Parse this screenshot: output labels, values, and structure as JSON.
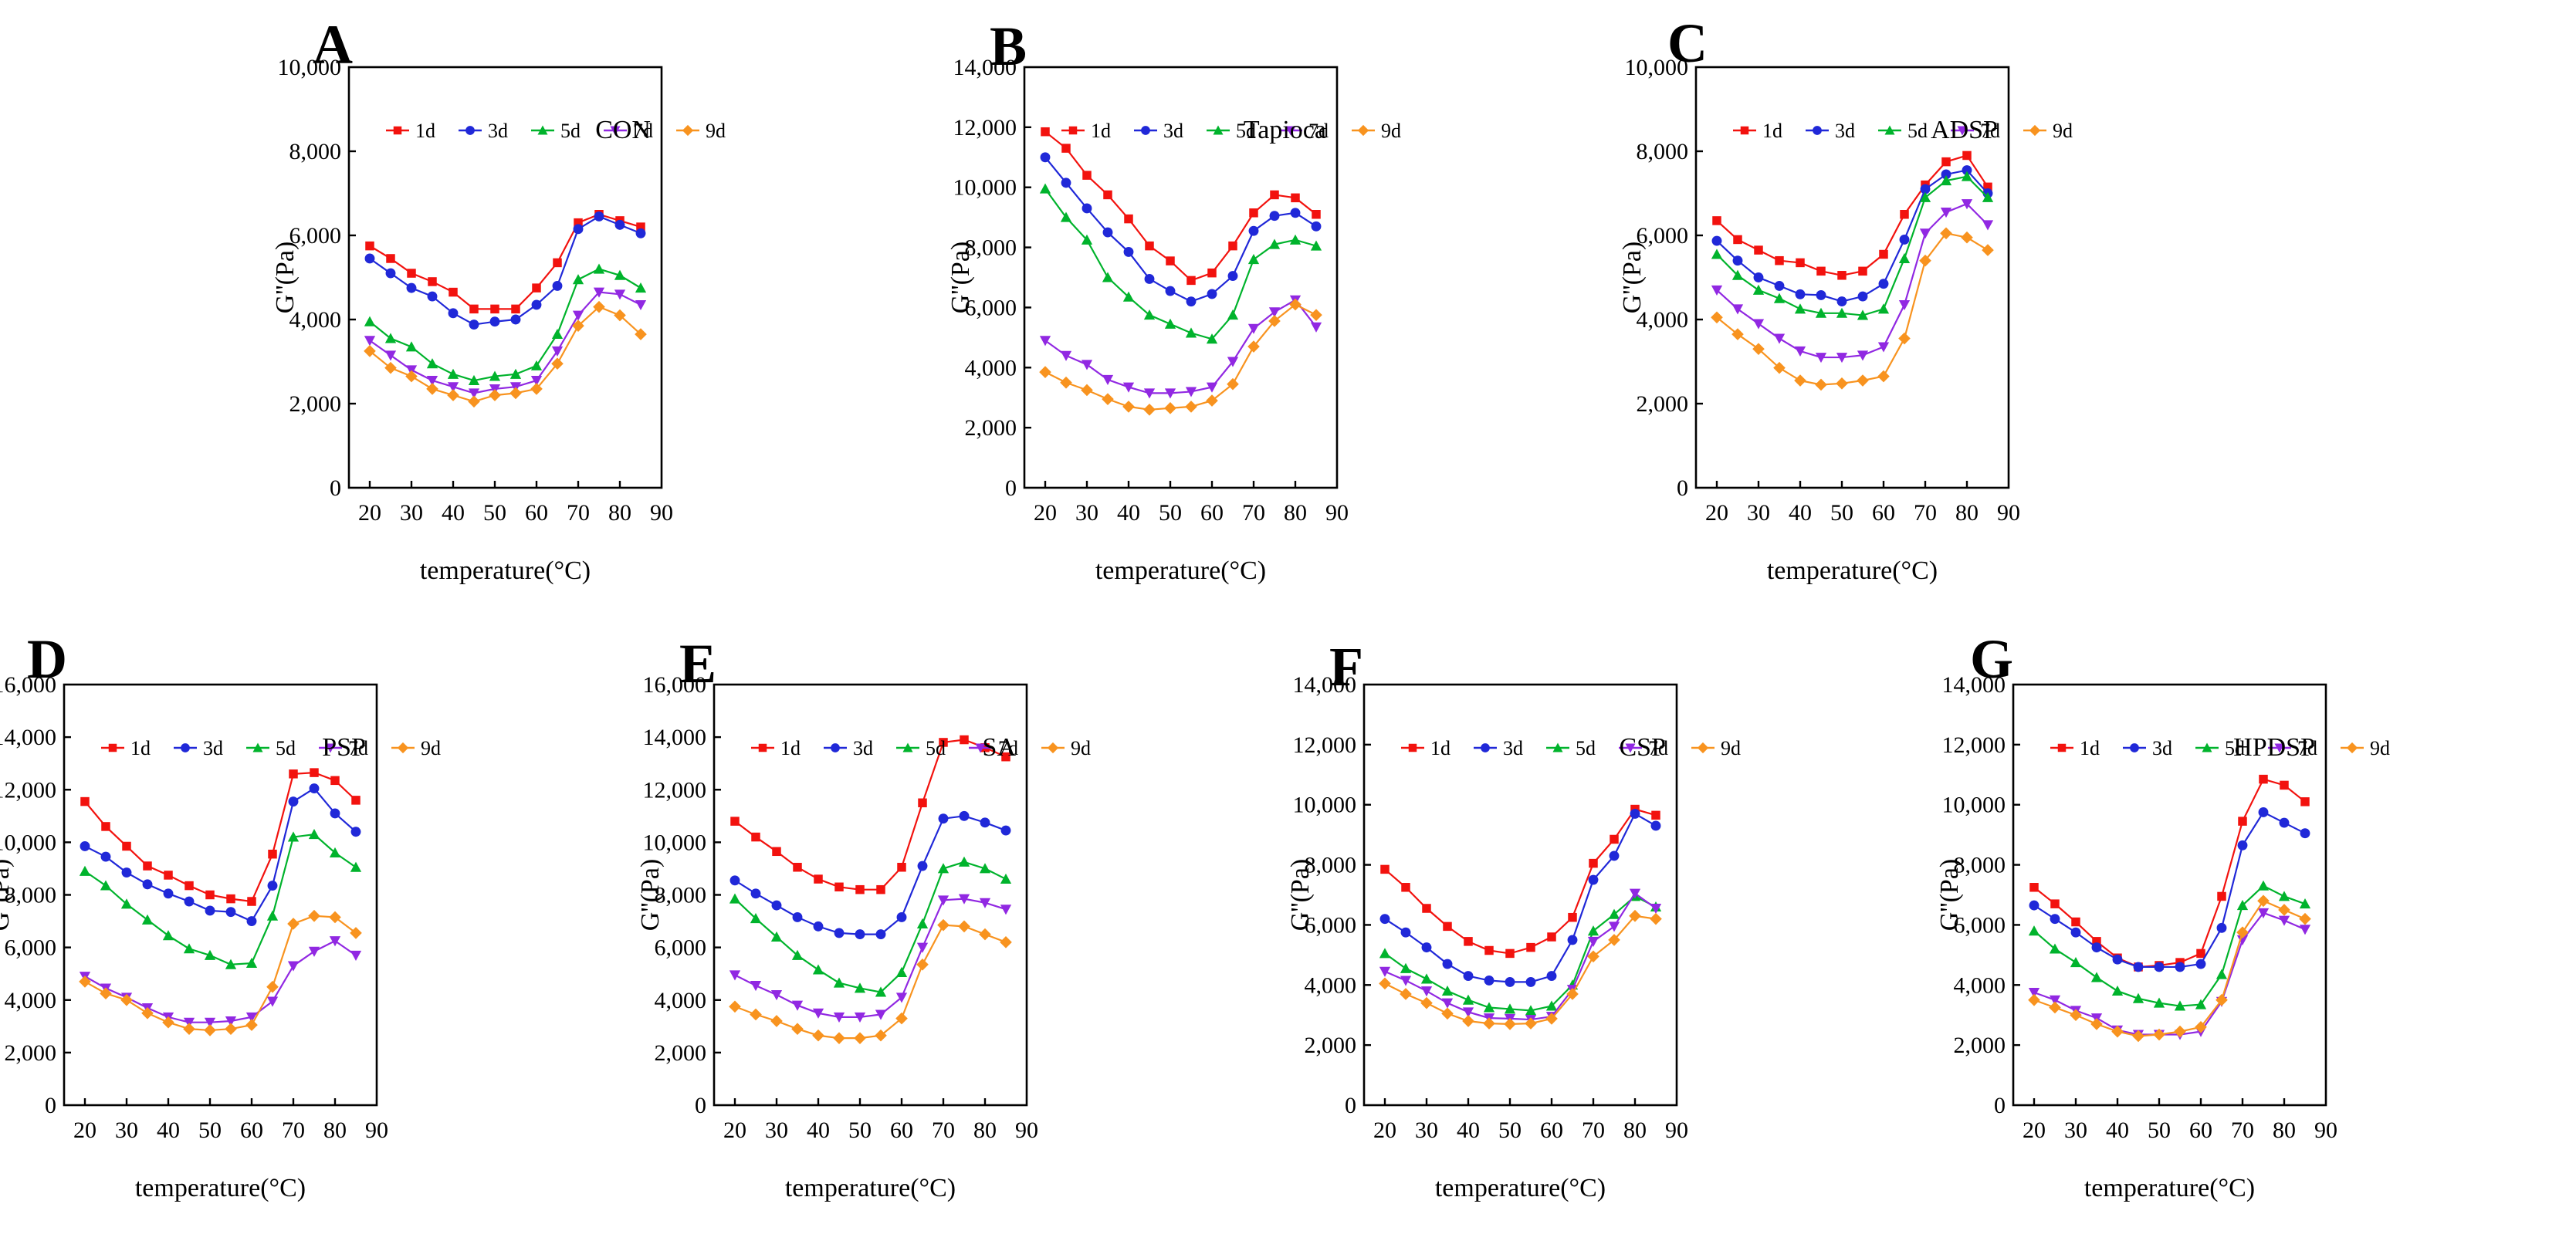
{
  "figure": {
    "x_axis_label": "temperature(°C)",
    "y_axis_label": "G''(Pa)",
    "legend_labels": [
      "1d",
      "3d",
      "5d",
      "7d",
      "9d"
    ],
    "series_colors": {
      "1d": "#f2120e",
      "3d": "#2028d8",
      "5d": "#00b32c",
      "7d": "#9128e2",
      "9d": "#f8931f"
    },
    "series_markers": {
      "1d": "square",
      "3d": "circle",
      "5d": "triangle-up",
      "7d": "triangle-down",
      "9d": "diamond"
    },
    "axis_color": "#000000"
  },
  "chart_data": [
    {
      "type": "line",
      "panel": "A",
      "name": "CON",
      "xlabel": "temperature(°C)",
      "ylabel": "G''(Pa)",
      "x": [
        20,
        25,
        30,
        35,
        40,
        45,
        50,
        55,
        60,
        65,
        70,
        75,
        80,
        85
      ],
      "xticks": [
        20,
        30,
        40,
        50,
        60,
        70,
        80,
        90
      ],
      "xlim": [
        15,
        90
      ],
      "ylim": [
        0,
        10000
      ],
      "ytick_step": 2000,
      "series": [
        {
          "name": "1d",
          "values": [
            5750,
            5450,
            5100,
            4900,
            4650,
            4250,
            4250,
            4250,
            4750,
            5350,
            6300,
            6500,
            6350,
            6200
          ]
        },
        {
          "name": "3d",
          "values": [
            5450,
            5100,
            4750,
            4550,
            4150,
            3880,
            3950,
            4000,
            4350,
            4800,
            6150,
            6450,
            6250,
            6050
          ]
        },
        {
          "name": "5d",
          "values": [
            3950,
            3550,
            3350,
            2950,
            2700,
            2550,
            2650,
            2700,
            2900,
            3650,
            4950,
            5200,
            5050,
            4750
          ]
        },
        {
          "name": "7d",
          "values": [
            3500,
            3150,
            2800,
            2550,
            2400,
            2250,
            2350,
            2400,
            2550,
            3250,
            4100,
            4650,
            4600,
            4350
          ]
        },
        {
          "name": "9d",
          "values": [
            3250,
            2850,
            2650,
            2350,
            2200,
            2050,
            2200,
            2250,
            2350,
            2950,
            3850,
            4300,
            4100,
            3650
          ]
        }
      ]
    },
    {
      "type": "line",
      "panel": "B",
      "name": "Tapioca",
      "xlabel": "temperature(°C)",
      "ylabel": "G''(Pa)",
      "x": [
        20,
        25,
        30,
        35,
        40,
        45,
        50,
        55,
        60,
        65,
        70,
        75,
        80,
        85
      ],
      "xticks": [
        20,
        30,
        40,
        50,
        60,
        70,
        80,
        90
      ],
      "xlim": [
        15,
        90
      ],
      "ylim": [
        0,
        14000
      ],
      "ytick_step": 2000,
      "series": [
        {
          "name": "1d",
          "values": [
            11850,
            11300,
            10400,
            9750,
            8950,
            8050,
            7550,
            6900,
            7150,
            8050,
            9150,
            9750,
            9650,
            9100
          ]
        },
        {
          "name": "3d",
          "values": [
            11000,
            10150,
            9300,
            8500,
            7850,
            6950,
            6550,
            6200,
            6450,
            7050,
            8550,
            9050,
            9150,
            8700
          ]
        },
        {
          "name": "5d",
          "values": [
            9950,
            9000,
            8250,
            7000,
            6350,
            5750,
            5450,
            5150,
            4950,
            5750,
            7600,
            8100,
            8250,
            8050
          ]
        },
        {
          "name": "7d",
          "values": [
            4900,
            4400,
            4100,
            3600,
            3350,
            3150,
            3150,
            3200,
            3350,
            4200,
            5300,
            5850,
            6250,
            5350
          ]
        },
        {
          "name": "9d",
          "values": [
            3850,
            3500,
            3250,
            2950,
            2700,
            2600,
            2650,
            2700,
            2900,
            3450,
            4700,
            5550,
            6100,
            5750
          ]
        }
      ]
    },
    {
      "type": "line",
      "panel": "C",
      "name": "ADSP",
      "xlabel": "temperature(°C)",
      "ylabel": "G''(Pa)",
      "x": [
        20,
        25,
        30,
        35,
        40,
        45,
        50,
        55,
        60,
        65,
        70,
        75,
        80,
        85
      ],
      "xticks": [
        20,
        30,
        40,
        50,
        60,
        70,
        80,
        90
      ],
      "xlim": [
        15,
        90
      ],
      "ylim": [
        0,
        10000
      ],
      "ytick_step": 2000,
      "series": [
        {
          "name": "1d",
          "values": [
            6350,
            5900,
            5650,
            5400,
            5350,
            5150,
            5050,
            5150,
            5550,
            6500,
            7200,
            7750,
            7900,
            7150
          ]
        },
        {
          "name": "3d",
          "values": [
            5870,
            5400,
            5000,
            4800,
            4600,
            4580,
            4430,
            4550,
            4850,
            5900,
            7100,
            7450,
            7550,
            7000
          ]
        },
        {
          "name": "5d",
          "values": [
            5550,
            5050,
            4700,
            4500,
            4250,
            4150,
            4150,
            4100,
            4250,
            5450,
            6900,
            7300,
            7400,
            6900
          ]
        },
        {
          "name": "7d",
          "values": [
            4700,
            4250,
            3900,
            3550,
            3250,
            3100,
            3100,
            3150,
            3350,
            4350,
            6050,
            6550,
            6750,
            6250
          ]
        },
        {
          "name": "9d",
          "values": [
            4050,
            3650,
            3300,
            2850,
            2550,
            2450,
            2480,
            2550,
            2650,
            3550,
            5400,
            6050,
            5950,
            5650
          ]
        }
      ]
    },
    {
      "type": "line",
      "panel": "D",
      "name": "PSP",
      "xlabel": "temperature(°C)",
      "ylabel": "G''(Pa)",
      "x": [
        20,
        25,
        30,
        35,
        40,
        45,
        50,
        55,
        60,
        65,
        70,
        75,
        80,
        85
      ],
      "xticks": [
        20,
        30,
        40,
        50,
        60,
        70,
        80,
        90
      ],
      "xlim": [
        15,
        90
      ],
      "ylim": [
        0,
        16000
      ],
      "ytick_step": 2000,
      "series": [
        {
          "name": "1d",
          "values": [
            11550,
            10600,
            9850,
            9100,
            8750,
            8350,
            8000,
            7850,
            7750,
            9550,
            12600,
            12650,
            12350,
            11600
          ]
        },
        {
          "name": "3d",
          "values": [
            9850,
            9450,
            8850,
            8400,
            8050,
            7750,
            7400,
            7350,
            7000,
            8350,
            11550,
            12050,
            11100,
            10400
          ]
        },
        {
          "name": "5d",
          "values": [
            8900,
            8350,
            7650,
            7050,
            6450,
            5950,
            5700,
            5350,
            5400,
            7200,
            10200,
            10300,
            9600,
            9050
          ]
        },
        {
          "name": "7d",
          "values": [
            4900,
            4450,
            4100,
            3700,
            3350,
            3150,
            3150,
            3200,
            3350,
            3950,
            5300,
            5850,
            6250,
            5700
          ]
        },
        {
          "name": "9d",
          "values": [
            4700,
            4250,
            4000,
            3500,
            3150,
            2900,
            2850,
            2900,
            3050,
            4500,
            6900,
            7200,
            7150,
            6550
          ]
        }
      ]
    },
    {
      "type": "line",
      "panel": "E",
      "name": "SA",
      "xlabel": "temperature(°C)",
      "ylabel": "G''(Pa)",
      "x": [
        20,
        25,
        30,
        35,
        40,
        45,
        50,
        55,
        60,
        65,
        70,
        75,
        80,
        85
      ],
      "xticks": [
        20,
        30,
        40,
        50,
        60,
        70,
        80,
        90
      ],
      "xlim": [
        15,
        90
      ],
      "ylim": [
        0,
        16000
      ],
      "ytick_step": 2000,
      "series": [
        {
          "name": "1d",
          "values": [
            10800,
            10200,
            9650,
            9050,
            8600,
            8300,
            8200,
            8200,
            9050,
            11500,
            13800,
            13900,
            13600,
            13250
          ]
        },
        {
          "name": "3d",
          "values": [
            8550,
            8050,
            7600,
            7150,
            6800,
            6550,
            6500,
            6500,
            7150,
            9100,
            10900,
            11000,
            10750,
            10450
          ]
        },
        {
          "name": "5d",
          "values": [
            7850,
            7100,
            6400,
            5700,
            5150,
            4650,
            4450,
            4300,
            5050,
            6900,
            9000,
            9250,
            9000,
            8600
          ]
        },
        {
          "name": "7d",
          "values": [
            4950,
            4550,
            4200,
            3800,
            3500,
            3350,
            3350,
            3450,
            4100,
            6000,
            7800,
            7850,
            7700,
            7450
          ]
        },
        {
          "name": "9d",
          "values": [
            3750,
            3450,
            3200,
            2900,
            2650,
            2550,
            2550,
            2650,
            3300,
            5350,
            6850,
            6800,
            6500,
            6200
          ]
        }
      ]
    },
    {
      "type": "line",
      "panel": "F",
      "name": "CSP",
      "xlabel": "temperature(°C)",
      "ylabel": "G''(Pa)",
      "x": [
        20,
        25,
        30,
        35,
        40,
        45,
        50,
        55,
        60,
        65,
        70,
        75,
        80,
        85
      ],
      "xticks": [
        20,
        30,
        40,
        50,
        60,
        70,
        80,
        90
      ],
      "xlim": [
        15,
        90
      ],
      "ylim": [
        0,
        14000
      ],
      "ytick_step": 2000,
      "series": [
        {
          "name": "1d",
          "values": [
            7850,
            7250,
            6550,
            5950,
            5450,
            5150,
            5050,
            5250,
            5600,
            6250,
            8050,
            8850,
            9850,
            9650
          ]
        },
        {
          "name": "3d",
          "values": [
            6200,
            5750,
            5250,
            4700,
            4300,
            4150,
            4100,
            4100,
            4300,
            5500,
            7500,
            8300,
            9700,
            9300
          ]
        },
        {
          "name": "5d",
          "values": [
            5050,
            4550,
            4200,
            3800,
            3500,
            3250,
            3200,
            3150,
            3300,
            4000,
            5800,
            6350,
            6950,
            6600
          ]
        },
        {
          "name": "7d",
          "values": [
            4450,
            4150,
            3800,
            3400,
            3100,
            2900,
            2880,
            2850,
            2950,
            3850,
            5450,
            5950,
            7050,
            6550
          ]
        },
        {
          "name": "9d",
          "values": [
            4050,
            3700,
            3400,
            3050,
            2800,
            2720,
            2700,
            2720,
            2880,
            3700,
            4950,
            5500,
            6300,
            6200
          ]
        }
      ]
    },
    {
      "type": "line",
      "panel": "G",
      "name": "HPDSP",
      "xlabel": "temperature(°C)",
      "ylabel": "G''(Pa)",
      "x": [
        20,
        25,
        30,
        35,
        40,
        45,
        50,
        55,
        60,
        65,
        70,
        75,
        80,
        85
      ],
      "xticks": [
        20,
        30,
        40,
        50,
        60,
        70,
        80,
        90
      ],
      "xlim": [
        15,
        90
      ],
      "ylim": [
        0,
        14000
      ],
      "ytick_step": 2000,
      "series": [
        {
          "name": "1d",
          "values": [
            7250,
            6700,
            6100,
            5450,
            4900,
            4600,
            4650,
            4750,
            5050,
            6950,
            9450,
            10850,
            10650,
            10100
          ]
        },
        {
          "name": "3d",
          "values": [
            6650,
            6200,
            5750,
            5250,
            4850,
            4600,
            4600,
            4600,
            4700,
            5900,
            8650,
            9750,
            9400,
            9050
          ]
        },
        {
          "name": "5d",
          "values": [
            5800,
            5200,
            4750,
            4250,
            3800,
            3550,
            3400,
            3300,
            3350,
            4350,
            6650,
            7300,
            6950,
            6700
          ]
        },
        {
          "name": "7d",
          "values": [
            3750,
            3500,
            3150,
            2900,
            2500,
            2350,
            2350,
            2350,
            2450,
            3450,
            5500,
            6400,
            6150,
            5850
          ]
        },
        {
          "name": "9d",
          "values": [
            3500,
            3250,
            3000,
            2700,
            2450,
            2300,
            2350,
            2450,
            2600,
            3500,
            5750,
            6800,
            6500,
            6200
          ]
        }
      ]
    }
  ]
}
